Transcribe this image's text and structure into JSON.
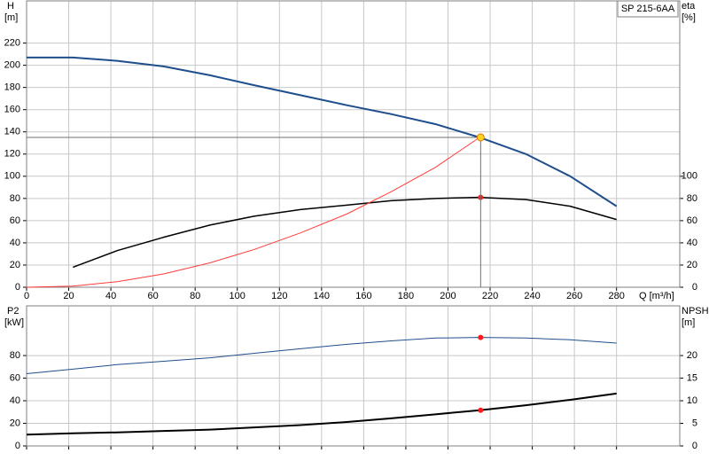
{
  "chart_data": [
    {
      "type": "line",
      "title": "SP 215-6AA",
      "ylabel": "H",
      "yunit": "[m]",
      "y2label": "eta",
      "y2unit": "[%]",
      "xlabel": "Q [m³/h]",
      "xlim": [
        0,
        310
      ],
      "xticks": [
        0,
        20,
        40,
        60,
        80,
        100,
        120,
        140,
        160,
        180,
        200,
        220,
        240,
        260,
        280
      ],
      "ylim": [
        0,
        258
      ],
      "yticks": [
        0,
        20,
        40,
        60,
        80,
        100,
        120,
        140,
        160,
        180,
        200,
        220
      ],
      "y2lim": [
        0,
        258
      ],
      "y2ticks": [
        0,
        20,
        40,
        60,
        80,
        100
      ],
      "grid": true,
      "show_xtick_labels": true,
      "series": [
        {
          "color": "#1f4e8c",
          "width": 2,
          "x": [
            0,
            22,
            43,
            65,
            87,
            108,
            130,
            152,
            173,
            194,
            215,
            237,
            258,
            280
          ],
          "values": [
            207,
            207,
            204,
            199,
            191,
            182,
            173,
            164,
            156,
            147,
            135,
            120,
            100,
            73
          ]
        },
        {
          "color": "#000000",
          "width": 1.5,
          "axis": "y2",
          "x": [
            22,
            43,
            65,
            87,
            108,
            130,
            152,
            173,
            194,
            215,
            237,
            258,
            280
          ],
          "values": [
            18,
            33,
            45,
            56,
            64,
            70,
            74,
            78,
            80,
            81,
            79,
            73,
            61
          ]
        },
        {
          "color": "#ff3b3b",
          "width": 1,
          "x": [
            0,
            22,
            43,
            65,
            87,
            108,
            130,
            152,
            173,
            194,
            215
          ],
          "values": [
            0,
            1,
            5,
            12,
            22,
            34,
            49,
            66,
            86,
            108,
            135
          ]
        },
        {
          "color": "#ff1a1a",
          "marker": true,
          "axis": "y2",
          "x": [
            215.5
          ],
          "values": [
            81
          ]
        },
        {
          "color": "#ffd21f",
          "marker": true,
          "crosshair": true,
          "x": [
            215.5
          ],
          "values": [
            135
          ]
        }
      ]
    },
    {
      "type": "line",
      "ylabel": "P2",
      "yunit": "[kW]",
      "y2label": "NPSH",
      "y2unit": "[m]",
      "xlim": [
        0,
        310
      ],
      "xticks": [
        0,
        20,
        40,
        60,
        80,
        100,
        120,
        140,
        160,
        180,
        200,
        220,
        240,
        260,
        280
      ],
      "ylim": [
        0,
        124
      ],
      "yticks": [
        0,
        20,
        40,
        60,
        80
      ],
      "y2lim": [
        0,
        31
      ],
      "y2ticks": [
        0,
        5,
        10,
        15,
        20
      ],
      "grid": true,
      "show_xtick_labels": false,
      "series": [
        {
          "color": "#1f4e8c",
          "width": 1,
          "x": [
            0,
            22,
            43,
            65,
            87,
            108,
            130,
            152,
            173,
            194,
            215,
            237,
            258,
            280
          ],
          "values": [
            64,
            68,
            72,
            75,
            78,
            82,
            86,
            90,
            93,
            95.5,
            96,
            95.5,
            94,
            91
          ]
        },
        {
          "color": "#000000",
          "width": 2,
          "axis": "y2",
          "x": [
            0,
            22,
            43,
            65,
            87,
            108,
            130,
            152,
            173,
            194,
            215,
            237,
            258,
            280
          ],
          "values": [
            2.5,
            2.8,
            3.0,
            3.3,
            3.6,
            4.1,
            4.6,
            5.3,
            6.1,
            7.0,
            7.9,
            9.0,
            10.2,
            11.6
          ]
        },
        {
          "color": "#ff1a1a",
          "marker": true,
          "x": [
            215.5
          ],
          "values": [
            96
          ]
        },
        {
          "color": "#ff1a1a",
          "marker": true,
          "axis": "y2",
          "x": [
            215.5
          ],
          "values": [
            7.9
          ]
        }
      ]
    }
  ]
}
